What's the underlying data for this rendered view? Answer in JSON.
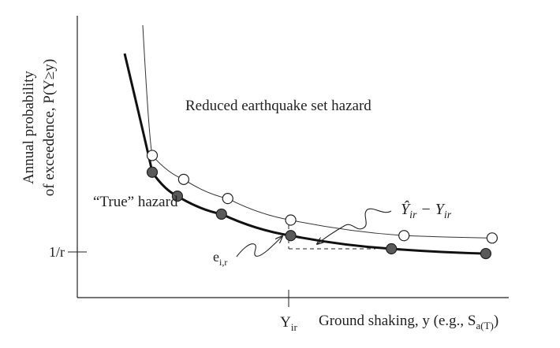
{
  "chart_data": {
    "type": "line",
    "title": "",
    "ylabel": {
      "line1": "Annual probability",
      "line2": "of exceedence, P(Y≥y)"
    },
    "xlabel": {
      "main": "Ground shaking, y (e.g., S",
      "sub": "a(T)",
      "close": ")"
    },
    "xtick": {
      "main": "Y",
      "sub": "ir"
    },
    "ytick": "1/r",
    "grid": false,
    "series": [
      {
        "name": "Reduced earthquake set hazard",
        "role": "reduced",
        "line_color": "#333333",
        "marker_fill": "#ffffff",
        "x": [
          1.0,
          1.5,
          2.2,
          3.2,
          5.0,
          6.4
        ],
        "y": [
          0.78,
          0.58,
          0.42,
          0.24,
          0.11,
          0.09
        ]
      },
      {
        "name": "“True” hazard",
        "role": "true",
        "line_color": "#111111",
        "marker_fill": "#5a5a5a",
        "x": [
          1.0,
          1.4,
          2.1,
          3.2,
          4.8,
          6.3
        ],
        "y": [
          0.64,
          0.44,
          0.29,
          0.11,
          0.0,
          -0.04
        ]
      }
    ],
    "annotations": {
      "error_label": {
        "main": "e",
        "sub": "i,r"
      },
      "difference_label": {
        "hat_term": "Ŷ",
        "hat_sub": "ir",
        "minus": "−",
        "term": "Y",
        "term_sub": "ir"
      }
    }
  }
}
